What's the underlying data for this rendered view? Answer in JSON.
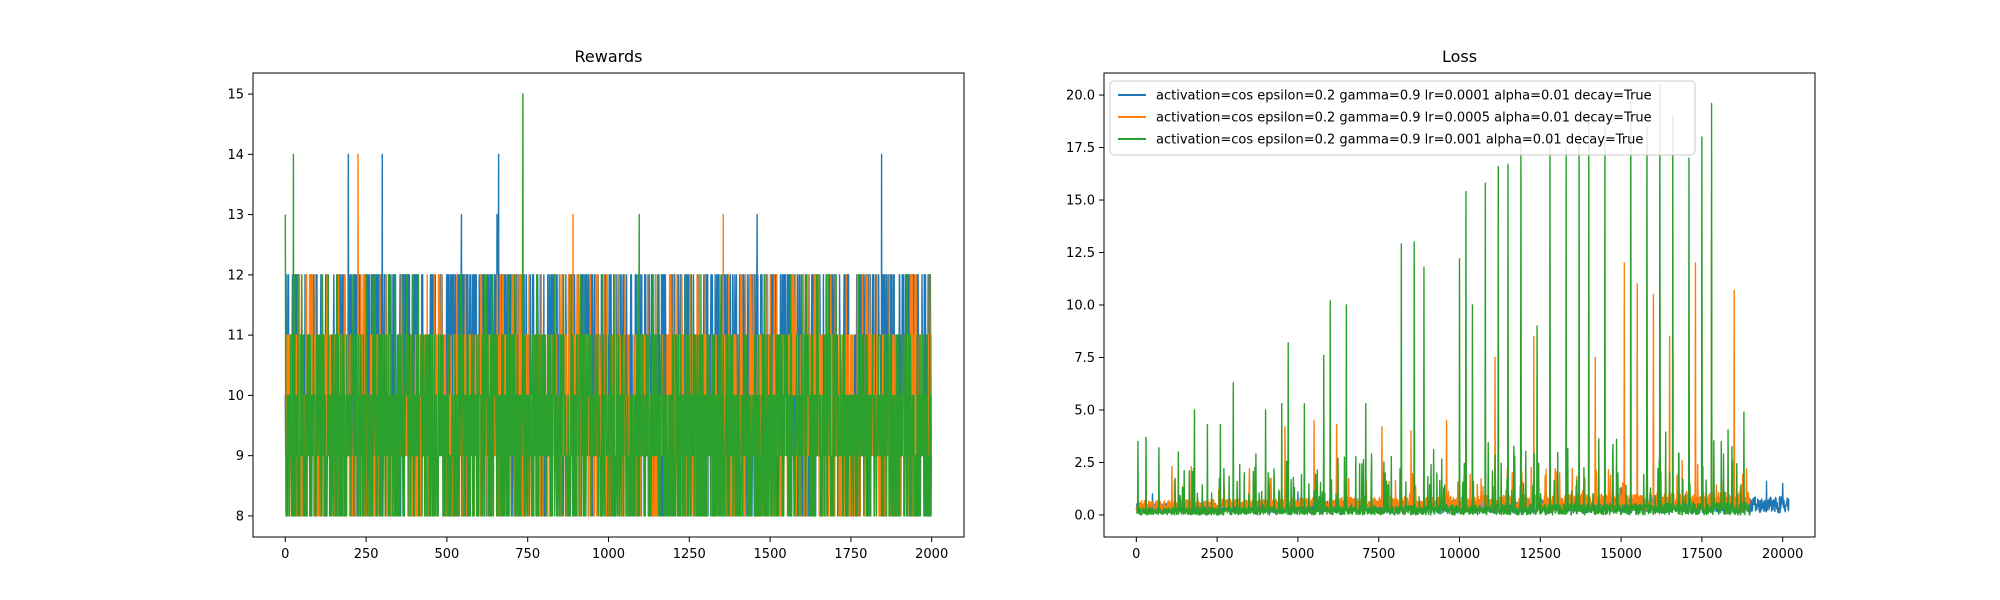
{
  "chart_data": [
    {
      "type": "line",
      "title": "Rewards",
      "xlabel": "",
      "ylabel": "",
      "xlim": [
        -100,
        2100
      ],
      "ylim": [
        7.65,
        15.35
      ],
      "x_ticks": [
        0,
        250,
        500,
        750,
        1000,
        1250,
        1500,
        1750,
        2000
      ],
      "x_tick_labels": [
        "0",
        "250",
        "500",
        "750",
        "1000",
        "1250",
        "1500",
        "1750",
        "2000"
      ],
      "y_ticks": [
        8,
        9,
        10,
        11,
        12,
        13,
        14,
        15
      ],
      "y_tick_labels": [
        "8",
        "9",
        "10",
        "11",
        "12",
        "13",
        "14",
        "15"
      ],
      "grid": false,
      "series": [
        {
          "color": "#1f77b4",
          "length": 2000,
          "values": "discrete rewards in {8,9,10,11,12}, frequent jumps to 12; spikes of 14 near x=195, 300, 660, 1845; spikes of 13 near x=545, 655, 1460",
          "x": [
            0,
            195,
            300,
            545,
            655,
            660,
            1460,
            1845,
            2000
          ],
          "y": [
            10,
            14,
            14,
            13,
            13,
            14,
            13,
            14,
            10
          ]
        },
        {
          "color": "#ff7f0e",
          "length": 2000,
          "values": "discrete rewards in {8,...,12}; spikes of 14 near x=225, 13 near x=890, 1355",
          "x": [
            0,
            225,
            890,
            1355,
            2000
          ],
          "y": [
            9,
            14,
            13,
            13,
            9
          ]
        },
        {
          "color": "#2ca02c",
          "length": 2000,
          "values": "discrete rewards mostly 8-11; spikes of 13 at x=0, 14 near x=25, 15 near x=735, 13 near x=1095",
          "x": [
            0,
            25,
            735,
            1095,
            2000
          ],
          "y": [
            13,
            14,
            15,
            13,
            9
          ]
        }
      ]
    },
    {
      "type": "line",
      "title": "Loss",
      "xlabel": "",
      "ylabel": "",
      "xlim": [
        -1000,
        21000
      ],
      "ylim": [
        -1.05,
        21.05
      ],
      "x_ticks": [
        0,
        2500,
        5000,
        7500,
        10000,
        12500,
        15000,
        17500,
        20000
      ],
      "x_tick_labels": [
        "0",
        "2500",
        "5000",
        "7500",
        "10000",
        "12500",
        "15000",
        "17500",
        "20000"
      ],
      "y_ticks": [
        0.0,
        2.5,
        5.0,
        7.5,
        10.0,
        12.5,
        15.0,
        17.5,
        20.0
      ],
      "y_tick_labels": [
        "0.0",
        "2.5",
        "5.0",
        "7.5",
        "10.0",
        "12.5",
        "15.0",
        "17.5",
        "20.0"
      ],
      "grid": false,
      "legend_position": "top-left",
      "series": [
        {
          "name": "activation=cos epsilon=0.2 gamma=0.9 lr=0.0001 alpha=0.01 decay=True",
          "color": "#1f77b4",
          "length": 20200,
          "baseline_range": [
            0.1,
            0.9
          ],
          "spikes": [
            [
              500,
              1.0
            ],
            [
              5000,
              1.1
            ],
            [
              10000,
              1.2
            ],
            [
              15000,
              1.3
            ],
            [
              19500,
              1.6
            ],
            [
              20000,
              1.5
            ]
          ]
        },
        {
          "name": "activation=cos epsilon=0.2 gamma=0.9 lr=0.0005 alpha=0.01 decay=True",
          "color": "#ff7f0e",
          "length": 19000,
          "baseline_range": [
            0.2,
            1.1
          ],
          "spikes": [
            [
              1100,
              2.3
            ],
            [
              1700,
              2.3
            ],
            [
              3500,
              2.2
            ],
            [
              4600,
              4.2
            ],
            [
              5500,
              4.5
            ],
            [
              6200,
              4.3
            ],
            [
              7600,
              4.2
            ],
            [
              8500,
              4.0
            ],
            [
              9600,
              4.5
            ],
            [
              10200,
              7.0
            ],
            [
              11100,
              7.5
            ],
            [
              11900,
              9.2
            ],
            [
              12300,
              8.5
            ],
            [
              13100,
              2.0
            ],
            [
              14200,
              7.5
            ],
            [
              15100,
              12.0
            ],
            [
              15500,
              11.0
            ],
            [
              16000,
              10.5
            ],
            [
              16500,
              8.5
            ],
            [
              17300,
              12.0
            ],
            [
              17800,
              13.2
            ],
            [
              18500,
              10.7
            ]
          ]
        },
        {
          "name": "activation=cos epsilon=0.2 gamma=0.9 lr=0.001 alpha=0.01 decay=True",
          "color": "#2ca02c",
          "length": 19000,
          "baseline_range": [
            0.0,
            0.6
          ],
          "spikes": [
            [
              50,
              3.5
            ],
            [
              300,
              3.7
            ],
            [
              700,
              3.2
            ],
            [
              1300,
              3.0
            ],
            [
              1800,
              5.0
            ],
            [
              2200,
              4.3
            ],
            [
              2600,
              4.3
            ],
            [
              3000,
              6.3
            ],
            [
              3700,
              2.9
            ],
            [
              4000,
              5.0
            ],
            [
              4500,
              5.3
            ],
            [
              4700,
              8.2
            ],
            [
              5200,
              5.3
            ],
            [
              5800,
              7.6
            ],
            [
              6000,
              10.2
            ],
            [
              6500,
              10.0
            ],
            [
              7100,
              5.3
            ],
            [
              7700,
              2.0
            ],
            [
              8200,
              12.9
            ],
            [
              8600,
              13.0
            ],
            [
              8900,
              11.8
            ],
            [
              9300,
              2.0
            ],
            [
              10000,
              12.2
            ],
            [
              10200,
              15.4
            ],
            [
              10400,
              10.0
            ],
            [
              10800,
              15.8
            ],
            [
              11200,
              16.6
            ],
            [
              11500,
              16.7
            ],
            [
              11900,
              17.8
            ],
            [
              12400,
              9.0
            ],
            [
              12800,
              18.0
            ],
            [
              13300,
              17.5
            ],
            [
              13700,
              18.2
            ],
            [
              14000,
              19.0
            ],
            [
              14500,
              18.5
            ],
            [
              14900,
              2.0
            ],
            [
              15300,
              19.7
            ],
            [
              15800,
              18.5
            ],
            [
              16200,
              20.5
            ],
            [
              16600,
              19.0
            ],
            [
              17100,
              17.0
            ],
            [
              17500,
              18.0
            ],
            [
              17800,
              19.6
            ],
            [
              18100,
              3.5
            ],
            [
              18800,
              4.9
            ]
          ]
        }
      ]
    }
  ]
}
